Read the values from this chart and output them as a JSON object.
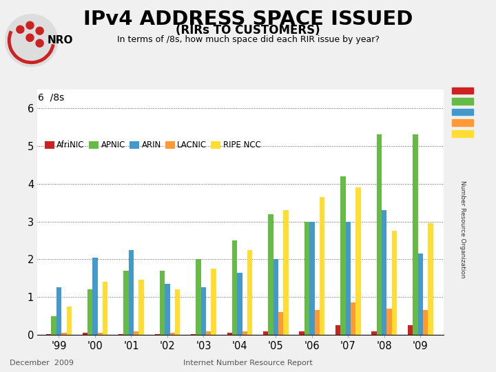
{
  "title_main": "IPv4 ADDRESS SPACE ISSUED",
  "title_sub": "(RIRs TO CUSTOMERS)",
  "title_sub2": "In terms of /8s, how much space did each RIR issue by year?",
  "footer_left": "December  2009",
  "footer_right": "Internet Number Resource Report",
  "years": [
    "'99",
    "'00",
    "'01",
    "'02",
    "'03",
    "'04",
    "'05",
    "'06",
    "'07",
    "'08",
    "'09"
  ],
  "series_names": [
    "AfriNIC",
    "APNIC",
    "ARIN",
    "LACNIC",
    "RIPE NCC"
  ],
  "series_colors": [
    "#cc2222",
    "#66bb44",
    "#4499cc",
    "#ff9933",
    "#ffdd33"
  ],
  "series_values": [
    [
      0.02,
      0.05,
      0.02,
      0.02,
      0.02,
      0.05,
      0.1,
      0.1,
      0.25,
      0.1,
      0.25
    ],
    [
      0.5,
      1.2,
      1.7,
      1.7,
      2.0,
      2.5,
      3.2,
      3.0,
      4.2,
      5.3,
      5.3
    ],
    [
      1.25,
      2.05,
      2.25,
      1.35,
      1.25,
      1.65,
      2.0,
      3.0,
      3.0,
      3.3,
      2.15
    ],
    [
      0.05,
      0.05,
      0.1,
      0.05,
      0.1,
      0.1,
      0.6,
      0.65,
      0.85,
      0.7,
      0.65
    ],
    [
      0.75,
      1.4,
      1.45,
      1.2,
      1.75,
      2.25,
      3.3,
      3.65,
      3.9,
      2.75,
      2.95
    ]
  ],
  "ylim": [
    0,
    6.5
  ],
  "yticks": [
    0,
    1,
    2,
    3,
    4,
    5,
    6
  ],
  "bar_width": 0.14,
  "bg_color": "#f0f0f0",
  "plot_bg": "#ffffff",
  "header_bg": "#ffffff",
  "grid_color": "#555555",
  "right_strip_color": "#dddddd"
}
